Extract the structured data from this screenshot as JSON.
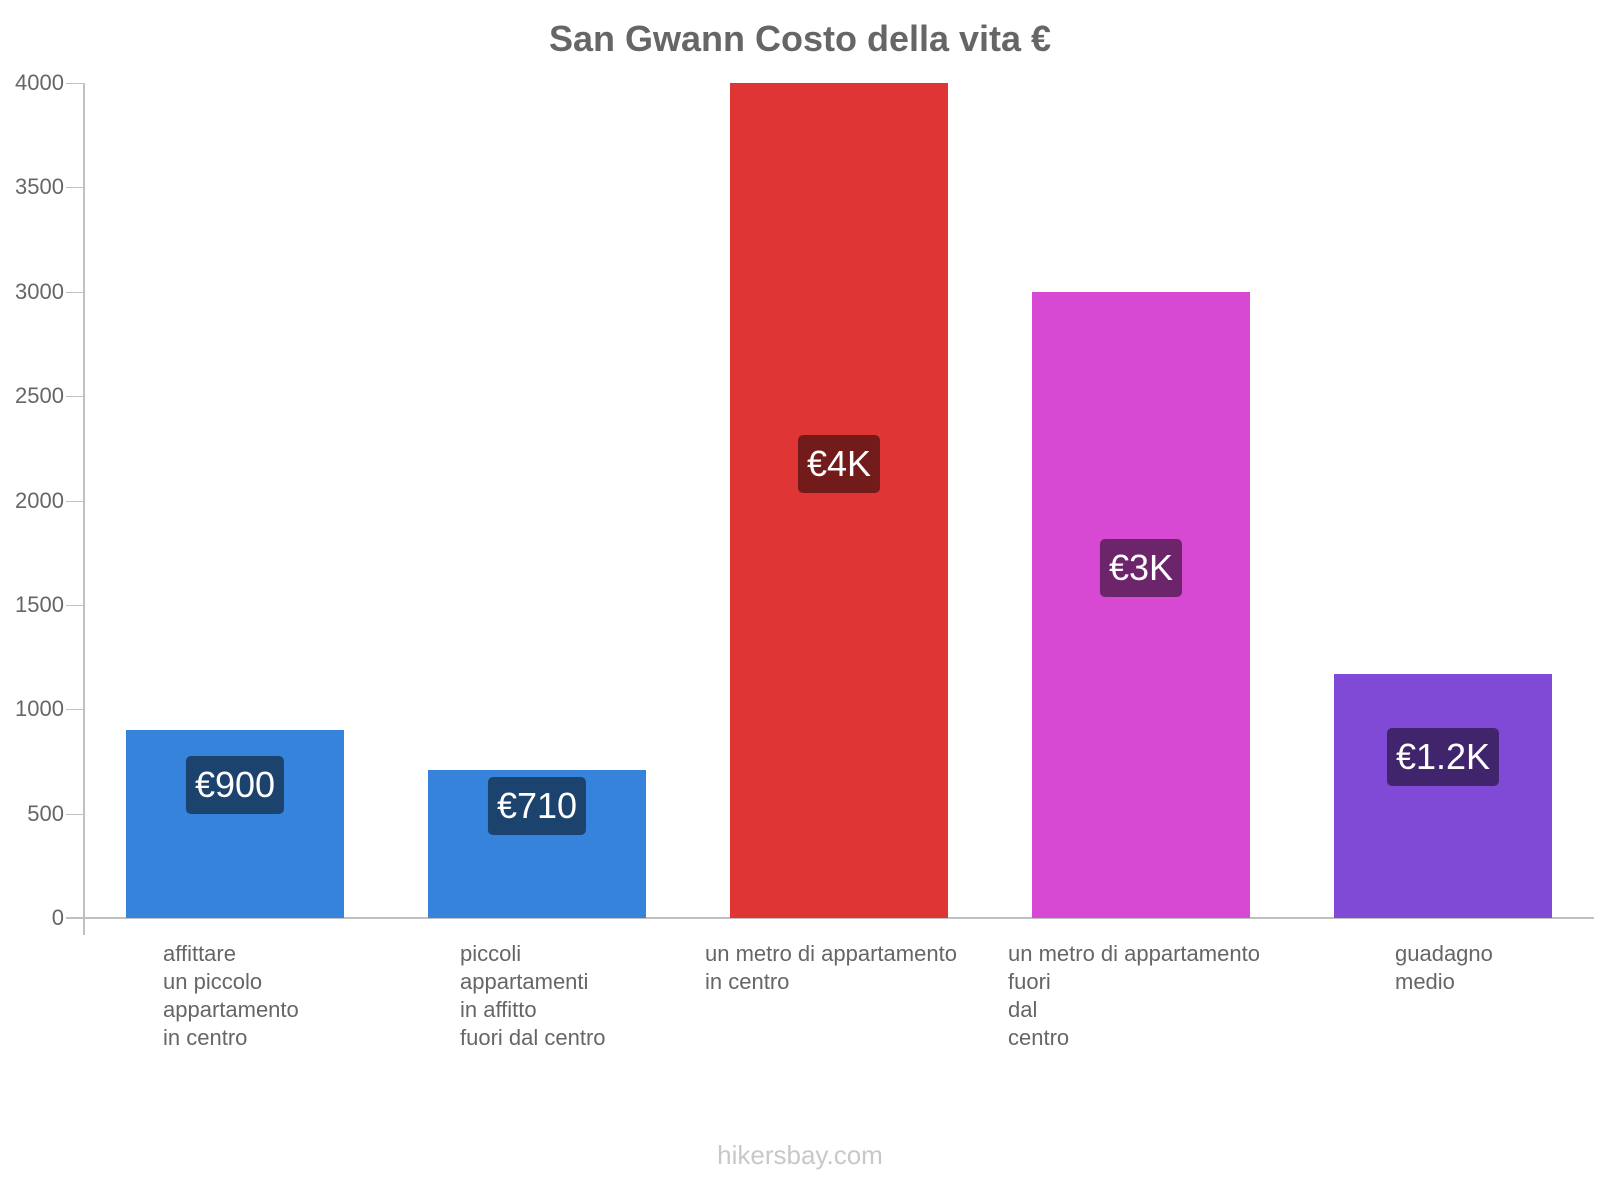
{
  "title": "San Gwann Costo della vita €",
  "watermark": "hikersbay.com",
  "y_axis": {
    "ticks": [
      "0",
      "500",
      "1000",
      "1500",
      "2000",
      "2500",
      "3000",
      "3500",
      "4000"
    ]
  },
  "bars": [
    {
      "label_lines": [
        "affittare",
        "un piccolo",
        "appartamento",
        "in centro"
      ],
      "value": 900,
      "badge": "€900",
      "color": "#3683dc",
      "badge_color": "#1c426e"
    },
    {
      "label_lines": [
        "piccoli",
        "appartamenti",
        "in affitto",
        "fuori dal centro"
      ],
      "value": 710,
      "badge": "€710",
      "color": "#3683dc",
      "badge_color": "#1c426e"
    },
    {
      "label_lines": [
        "un metro di appartamento",
        "in centro"
      ],
      "value": 4000,
      "badge": "€4K",
      "color": "#e03535",
      "badge_color": "#731b1b"
    },
    {
      "label_lines": [
        "un metro di appartamento",
        "fuori",
        "dal",
        "centro"
      ],
      "value": 3000,
      "badge": "€3K",
      "color": "#d748d3",
      "badge_color": "#6c246a"
    },
    {
      "label_lines": [
        "guadagno",
        "medio"
      ],
      "value": 1170,
      "badge": "€1.2K",
      "color": "#8049d6",
      "badge_color": "#41256c"
    }
  ],
  "chart_data": {
    "type": "bar",
    "title": "San Gwann Costo della vita €",
    "categories": [
      "affittare un piccolo appartamento in centro",
      "piccoli appartamenti in affitto fuori dal centro",
      "un metro di appartamento in centro",
      "un metro di appartamento fuori dal centro",
      "guadagno medio"
    ],
    "values": [
      900,
      710,
      4000,
      3000,
      1170
    ],
    "value_labels": [
      "€900",
      "€710",
      "€4K",
      "€3K",
      "€1.2K"
    ],
    "colors": [
      "#3683dc",
      "#3683dc",
      "#e03535",
      "#d748d3",
      "#8049d6"
    ],
    "xlabel": "",
    "ylabel": "",
    "ylim": [
      0,
      4000
    ],
    "yticks": [
      0,
      500,
      1000,
      1500,
      2000,
      2500,
      3000,
      3500,
      4000
    ],
    "grid": false,
    "legend": "none"
  }
}
